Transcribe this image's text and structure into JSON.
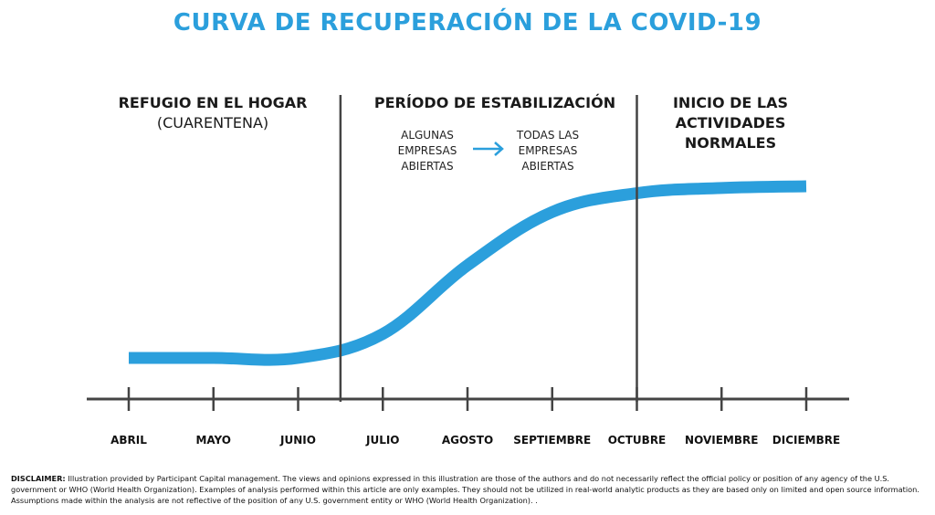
{
  "chart_data": {
    "type": "line",
    "title": "CURVA DE RECUPERACIÓN DE LA COVID-19",
    "categories": [
      "ABRIL",
      "MAYO",
      "JUNIO",
      "JULIO",
      "AGOSTO",
      "SEPTIEMBRE",
      "OCTUBRE",
      "NOVIEMBRE",
      "DICIEMBRE"
    ],
    "series": [
      {
        "name": "Recuperación",
        "values": [
          0.0,
          0.0,
          0.0,
          0.14,
          0.54,
          0.85,
          0.96,
          0.99,
          1.0
        ]
      }
    ],
    "ylim": [
      0,
      1
    ],
    "xlabel": "",
    "ylabel": "",
    "grid": false,
    "dividers_after": [
      "JUNIO",
      "SEPTIEMBRE"
    ],
    "phases": [
      {
        "title": "REFUGIO EN EL HOGAR",
        "subtitle": "(CUARENTENA)"
      },
      {
        "title": "PERÍODO DE ESTABILIZACIÓN",
        "subtitle": ""
      },
      {
        "title": "INICIO DE LAS",
        "subtitle": "ACTIVIDADES NORMALES"
      }
    ],
    "annotation": {
      "from": [
        "ALGUNAS",
        "EMPRESAS",
        "ABIERTAS"
      ],
      "to": [
        "TODAS LAS",
        "EMPRESAS",
        "ABIERTAS"
      ]
    }
  },
  "colors": {
    "accent": "#2b9fdc",
    "axis": "#444444"
  },
  "disclaimer": {
    "label": "DISCLAIMER:",
    "text": " Illustration provided by Participant Capital management. The views and opinions expressed in this illustration are those of the authors and do not necessarily reflect the official policy or position of any agency of the U.S. government or WHO (World Health Organization). Examples of analysis performed within this article are only examples. They should not be utilized in real-world analytic products as they are based only on limited and open source information. Assumptions made within the analysis are not reflective of the position of any U.S. government entity or WHO (World Health Organization). ."
  }
}
